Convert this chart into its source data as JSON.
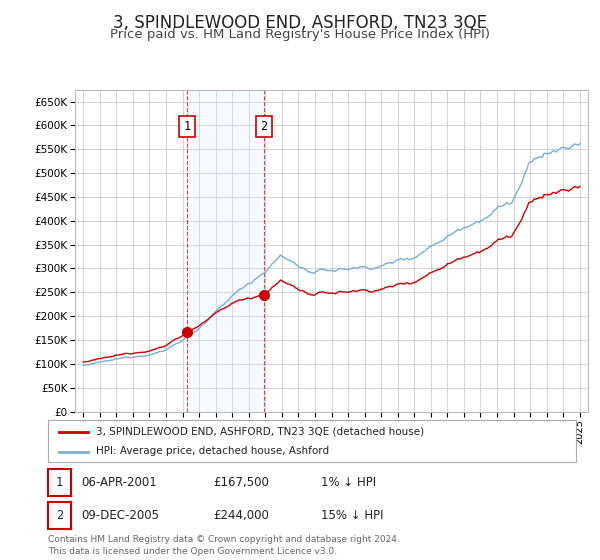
{
  "title": "3, SPINDLEWOOD END, ASHFORD, TN23 3QE",
  "subtitle": "Price paid vs. HM Land Registry's House Price Index (HPI)",
  "title_fontsize": 12,
  "subtitle_fontsize": 9.5,
  "background_color": "#ffffff",
  "plot_bg_color": "#ffffff",
  "grid_color": "#cccccc",
  "hpi_color": "#7aafd4",
  "price_color": "#cc0000",
  "dashed_color": "#cc0000",
  "shaded_color": "#ddeeff",
  "ylim": [
    0,
    675000
  ],
  "yticks": [
    0,
    50000,
    100000,
    150000,
    200000,
    250000,
    300000,
    350000,
    400000,
    450000,
    500000,
    550000,
    600000,
    650000
  ],
  "ytick_labels": [
    "£0",
    "£50K",
    "£100K",
    "£150K",
    "£200K",
    "£250K",
    "£300K",
    "£350K",
    "£400K",
    "£450K",
    "£500K",
    "£550K",
    "£600K",
    "£650K"
  ],
  "xmin_year": 1994.5,
  "xmax_year": 2025.5,
  "xticks": [
    1995,
    1996,
    1997,
    1998,
    1999,
    2000,
    2001,
    2002,
    2003,
    2004,
    2005,
    2006,
    2007,
    2008,
    2009,
    2010,
    2011,
    2012,
    2013,
    2014,
    2015,
    2016,
    2017,
    2018,
    2019,
    2020,
    2021,
    2022,
    2023,
    2024,
    2025
  ],
  "t1_date": 2001.27,
  "t1_price": 167500,
  "t2_date": 2005.93,
  "t2_price": 244000,
  "legend_property_label": "3, SPINDLEWOOD END, ASHFORD, TN23 3QE (detached house)",
  "legend_hpi_label": "HPI: Average price, detached house, Ashford",
  "table_row1_num": "1",
  "table_row1_date": "06-APR-2001",
  "table_row1_price": "£167,500",
  "table_row1_hpi": "1% ↓ HPI",
  "table_row2_num": "2",
  "table_row2_date": "09-DEC-2005",
  "table_row2_price": "£244,000",
  "table_row2_hpi": "15% ↓ HPI",
  "footnote": "Contains HM Land Registry data © Crown copyright and database right 2024.\nThis data is licensed under the Open Government Licence v3.0."
}
